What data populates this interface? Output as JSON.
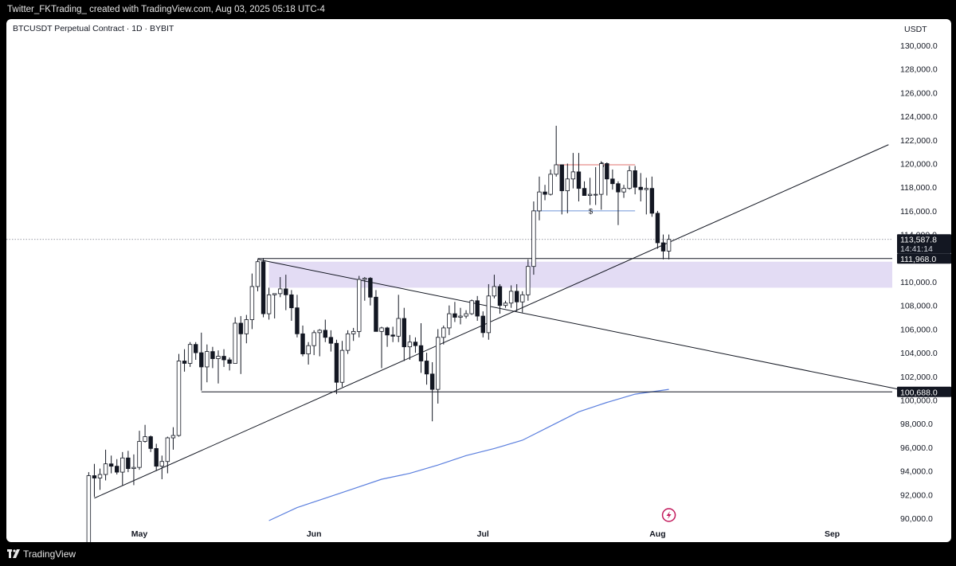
{
  "header": {
    "credit": "Twitter_FKTrading_ created with TradingView.com, Aug 03, 2025 05:18 UTC-4"
  },
  "legend": {
    "symbol": "BTCUSDT Perpetual Contract · 1D · BYBIT"
  },
  "footer": {
    "brand": "TradingView",
    "brand_icon": "tradingview-logo-icon"
  },
  "chart_data": {
    "type": "candlestick",
    "currency_label": "USDT",
    "ylim": [
      89200,
      131000
    ],
    "y_ticks": [
      {
        "v": 90000,
        "label": "90,000.0"
      },
      {
        "v": 92000,
        "label": "92,000.0"
      },
      {
        "v": 94000,
        "label": "94,000.0"
      },
      {
        "v": 96000,
        "label": "96,000.0"
      },
      {
        "v": 98000,
        "label": "98,000.0"
      },
      {
        "v": 100000,
        "label": "100,000.0"
      },
      {
        "v": 102000,
        "label": "102,000.0"
      },
      {
        "v": 104000,
        "label": "104,000.0"
      },
      {
        "v": 106000,
        "label": "106,000.0"
      },
      {
        "v": 108000,
        "label": "108,000.0"
      },
      {
        "v": 110000,
        "label": "110,000.0"
      },
      {
        "v": 114000,
        "label": "114,000.0"
      },
      {
        "v": 116000,
        "label": "116,000.0"
      },
      {
        "v": 118000,
        "label": "118,000.0"
      },
      {
        "v": 120000,
        "label": "120,000.0"
      },
      {
        "v": 122000,
        "label": "122,000.0"
      },
      {
        "v": 124000,
        "label": "124,000.0"
      },
      {
        "v": 126000,
        "label": "126,000.0"
      },
      {
        "v": 128000,
        "label": "128,000.0"
      },
      {
        "v": 130000,
        "label": "130,000.0"
      }
    ],
    "x_ticks": [
      {
        "date": "2025-05-01",
        "label": "May"
      },
      {
        "date": "2025-06-01",
        "label": "Jun"
      },
      {
        "date": "2025-07-01",
        "label": "Jul"
      },
      {
        "date": "2025-08-01",
        "label": "Aug"
      },
      {
        "date": "2025-09-01",
        "label": "Sep"
      }
    ],
    "candles": [
      [
        "2025-04-22",
        87000,
        93900,
        86800,
        93600
      ],
      [
        "2025-04-23",
        93600,
        94600,
        91800,
        93400
      ],
      [
        "2025-04-24",
        93400,
        94200,
        92400,
        93700
      ],
      [
        "2025-04-25",
        93700,
        95800,
        93200,
        94600
      ],
      [
        "2025-04-26",
        94600,
        95300,
        93800,
        94400
      ],
      [
        "2025-04-27",
        94400,
        95000,
        93700,
        93900
      ],
      [
        "2025-04-28",
        93900,
        95600,
        92800,
        95100
      ],
      [
        "2025-04-29",
        95100,
        95700,
        93900,
        94200
      ],
      [
        "2025-04-30",
        94200,
        95400,
        92800,
        94300
      ],
      [
        "2025-05-01",
        94300,
        97400,
        94100,
        96500
      ],
      [
        "2025-05-02",
        96500,
        97900,
        96400,
        96900
      ],
      [
        "2025-05-03",
        96900,
        97000,
        95600,
        95900
      ],
      [
        "2025-05-04",
        95900,
        96300,
        94000,
        94400
      ],
      [
        "2025-05-05",
        94400,
        95300,
        93300,
        94800
      ],
      [
        "2025-05-06",
        94800,
        96900,
        93800,
        96800
      ],
      [
        "2025-05-07",
        96800,
        97700,
        95800,
        97000
      ],
      [
        "2025-05-08",
        97000,
        103900,
        96900,
        103300
      ],
      [
        "2025-05-09",
        103300,
        104300,
        102400,
        103100
      ],
      [
        "2025-05-10",
        103100,
        104900,
        102800,
        104700
      ],
      [
        "2025-05-11",
        104700,
        104900,
        103400,
        104000
      ],
      [
        "2025-05-12",
        104000,
        105700,
        100800,
        102800
      ],
      [
        "2025-05-13",
        102800,
        104700,
        101500,
        104100
      ],
      [
        "2025-05-14",
        104100,
        104500,
        102700,
        103500
      ],
      [
        "2025-05-15",
        103500,
        104200,
        101400,
        103700
      ],
      [
        "2025-05-16",
        103700,
        104300,
        102800,
        103400
      ],
      [
        "2025-05-17",
        103400,
        103600,
        102500,
        103100
      ],
      [
        "2025-05-18",
        103100,
        107000,
        103100,
        106500
      ],
      [
        "2025-05-19",
        106500,
        107100,
        102200,
        105600
      ],
      [
        "2025-05-20",
        105600,
        107200,
        104800,
        106800
      ],
      [
        "2025-05-21",
        106800,
        110700,
        106000,
        109600
      ],
      [
        "2025-05-22",
        109600,
        111900,
        109200,
        111700
      ],
      [
        "2025-05-23",
        111700,
        112000,
        107000,
        107300
      ],
      [
        "2025-05-24",
        107300,
        109500,
        106800,
        108900
      ],
      [
        "2025-05-25",
        108900,
        109000,
        106900,
        109000
      ],
      [
        "2025-05-26",
        109000,
        110400,
        108700,
        109400
      ],
      [
        "2025-05-27",
        109400,
        110600,
        107600,
        108900
      ],
      [
        "2025-05-28",
        108900,
        109300,
        106700,
        107800
      ],
      [
        "2025-05-29",
        107800,
        108900,
        105300,
        105600
      ],
      [
        "2025-05-30",
        105600,
        106300,
        103700,
        103900
      ],
      [
        "2025-05-31",
        103900,
        104900,
        103000,
        104600
      ],
      [
        "2025-06-01",
        104600,
        105900,
        103800,
        105700
      ],
      [
        "2025-06-02",
        105700,
        106000,
        103700,
        105900
      ],
      [
        "2025-06-03",
        105900,
        106800,
        104900,
        105300
      ],
      [
        "2025-06-04",
        105300,
        105900,
        104100,
        104800
      ],
      [
        "2025-06-05",
        104800,
        105100,
        100500,
        101500
      ],
      [
        "2025-06-06",
        101500,
        105000,
        101100,
        104200
      ],
      [
        "2025-06-07",
        104200,
        105900,
        103900,
        105600
      ],
      [
        "2025-06-08",
        105600,
        106100,
        105000,
        105800
      ],
      [
        "2025-06-09",
        105800,
        110500,
        105300,
        110200
      ],
      [
        "2025-06-10",
        110200,
        110400,
        108400,
        110300
      ],
      [
        "2025-06-11",
        110300,
        110400,
        108000,
        108700
      ],
      [
        "2025-06-12",
        108700,
        109300,
        105800,
        105800
      ],
      [
        "2025-06-13",
        105800,
        106200,
        102700,
        106100
      ],
      [
        "2025-06-14",
        106100,
        106200,
        104500,
        105500
      ],
      [
        "2025-06-15",
        105500,
        106200,
        104900,
        105400
      ],
      [
        "2025-06-16",
        105400,
        108900,
        104900,
        106900
      ],
      [
        "2025-06-17",
        106900,
        107800,
        103300,
        104500
      ],
      [
        "2025-06-18",
        104500,
        105500,
        103400,
        104900
      ],
      [
        "2025-06-19",
        104900,
        105300,
        104000,
        104600
      ],
      [
        "2025-06-20",
        104600,
        106500,
        102300,
        103300
      ],
      [
        "2025-06-21",
        103300,
        104000,
        101300,
        102200
      ],
      [
        "2025-06-22",
        102200,
        103200,
        98200,
        100900
      ],
      [
        "2025-06-23",
        100900,
        106000,
        99700,
        105300
      ],
      [
        "2025-06-24",
        105300,
        106300,
        104700,
        106100
      ],
      [
        "2025-06-25",
        106100,
        108000,
        105500,
        107300
      ],
      [
        "2025-06-26",
        107300,
        108300,
        106600,
        107000
      ],
      [
        "2025-06-27",
        107000,
        107800,
        106400,
        107100
      ],
      [
        "2025-06-28",
        107100,
        107600,
        106900,
        107300
      ],
      [
        "2025-06-29",
        107300,
        108500,
        107200,
        108400
      ],
      [
        "2025-06-30",
        108400,
        108800,
        106700,
        107100
      ],
      [
        "2025-07-01",
        107100,
        107500,
        105300,
        105700
      ],
      [
        "2025-07-02",
        105700,
        109800,
        105100,
        108800
      ],
      [
        "2025-07-03",
        108800,
        110600,
        108600,
        109600
      ],
      [
        "2025-07-04",
        109600,
        109800,
        107300,
        108000
      ],
      [
        "2025-07-05",
        108000,
        108400,
        107800,
        108200
      ],
      [
        "2025-07-06",
        108200,
        109700,
        107800,
        109200
      ],
      [
        "2025-07-07",
        109200,
        109800,
        107500,
        108300
      ],
      [
        "2025-07-08",
        108300,
        109200,
        107400,
        108900
      ],
      [
        "2025-07-09",
        108900,
        111900,
        108400,
        111300
      ],
      [
        "2025-07-10",
        111300,
        116800,
        110600,
        116000
      ],
      [
        "2025-07-11",
        116000,
        118900,
        115200,
        117600
      ],
      [
        "2025-07-12",
        117600,
        118200,
        116900,
        117400
      ],
      [
        "2025-07-13",
        117400,
        119500,
        117300,
        119100
      ],
      [
        "2025-07-14",
        119100,
        123200,
        118900,
        119900
      ],
      [
        "2025-07-15",
        119900,
        119900,
        115700,
        117700
      ],
      [
        "2025-07-16",
        117700,
        120000,
        115800,
        118700
      ],
      [
        "2025-07-17",
        118700,
        120900,
        117900,
        119300
      ],
      [
        "2025-07-18",
        119300,
        120900,
        116800,
        117900
      ],
      [
        "2025-07-19",
        117900,
        118500,
        117400,
        117300
      ],
      [
        "2025-07-20",
        117300,
        118800,
        116500,
        117400
      ],
      [
        "2025-07-21",
        117400,
        119700,
        116500,
        117400
      ],
      [
        "2025-07-22",
        117400,
        120200,
        116100,
        120000
      ],
      [
        "2025-07-23",
        120000,
        120100,
        117300,
        118700
      ],
      [
        "2025-07-24",
        118700,
        119500,
        117800,
        118300
      ],
      [
        "2025-07-25",
        118300,
        118500,
        114800,
        117600
      ],
      [
        "2025-07-26",
        117600,
        118200,
        117100,
        117900
      ],
      [
        "2025-07-27",
        117900,
        119800,
        117800,
        119400
      ],
      [
        "2025-07-28",
        119400,
        119800,
        117400,
        118000
      ],
      [
        "2025-07-29",
        118000,
        119200,
        116800,
        117800
      ],
      [
        "2025-07-30",
        117800,
        118800,
        115700,
        117900
      ],
      [
        "2025-07-31",
        117900,
        118900,
        115500,
        115800
      ],
      [
        "2025-08-01",
        115800,
        116000,
        112800,
        113300
      ],
      [
        "2025-08-02",
        113300,
        114000,
        111900,
        112600
      ],
      [
        "2025-08-03",
        112600,
        114000,
        111900,
        113588
      ]
    ],
    "sma": {
      "color": "#5b7fde",
      "points": [
        [
          "2025-05-24",
          89800
        ],
        [
          "2025-05-29",
          90900
        ],
        [
          "2025-06-03",
          91700
        ],
        [
          "2025-06-08",
          92500
        ],
        [
          "2025-06-13",
          93300
        ],
        [
          "2025-06-18",
          93800
        ],
        [
          "2025-06-23",
          94500
        ],
        [
          "2025-06-28",
          95300
        ],
        [
          "2025-07-03",
          95900
        ],
        [
          "2025-07-08",
          96600
        ],
        [
          "2025-07-13",
          97800
        ],
        [
          "2025-07-18",
          99000
        ],
        [
          "2025-07-23",
          99800
        ],
        [
          "2025-07-28",
          100500
        ],
        [
          "2025-08-03",
          100900
        ]
      ]
    },
    "trendlines": [
      {
        "from": [
          "2025-04-23",
          91700
        ],
        "to": [
          "2025-09-11",
          121600
        ]
      },
      {
        "from": [
          "2025-05-22",
          111900
        ],
        "to": [
          "2025-09-15",
          100700
        ]
      }
    ],
    "horizontal_lines": [
      {
        "from": "2025-05-22",
        "to": "2025-09-15",
        "price": 111968
      },
      {
        "from": "2025-05-12",
        "to": "2025-09-15",
        "price": 100688
      }
    ],
    "zone": {
      "from": "2025-05-24",
      "to": "2025-09-15",
      "low": 109500,
      "high": 111700,
      "color": "#e3dcf4"
    },
    "liquidity_levels": [
      {
        "from": "2025-07-14",
        "to": "2025-07-28",
        "price": 119900,
        "color": "#e0706e",
        "label": "$"
      },
      {
        "from": "2025-07-10",
        "to": "2025-07-28",
        "price": 116000,
        "color": "#6d95d8",
        "label": "$"
      }
    ],
    "last_price": {
      "value": 113587.8,
      "label": "113,587.8",
      "countdown": "14:41:14"
    },
    "price_labels": [
      {
        "value": 111968,
        "label": "111,968.0"
      },
      {
        "value": 100688,
        "label": "100,688.0"
      }
    ],
    "event_icon": {
      "date": "2025-08-03",
      "name": "lightning-event-icon"
    }
  }
}
